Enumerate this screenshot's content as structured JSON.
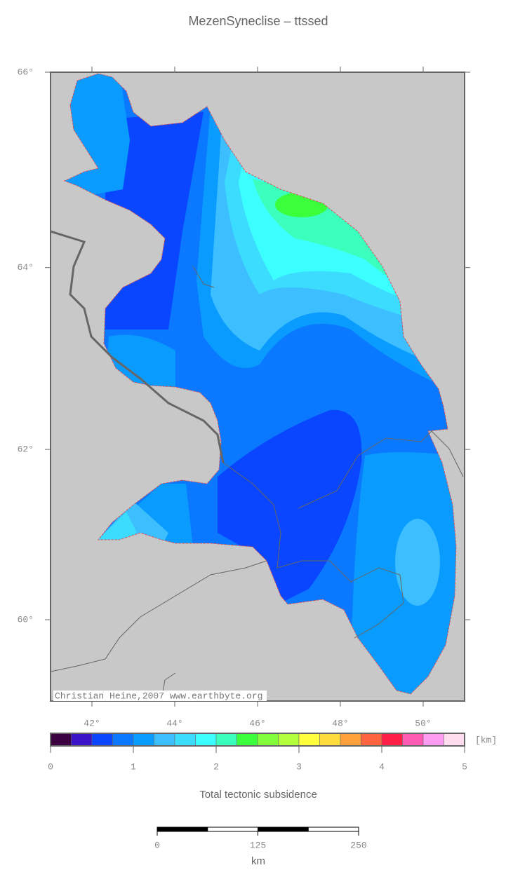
{
  "title": "MezenSyneclise – ttssed",
  "map": {
    "xlim": [
      41,
      51
    ],
    "ylim": [
      59,
      66
    ],
    "lat_ticks": [
      {
        "value": 66,
        "label": "66°"
      },
      {
        "value": 64,
        "label": "64°"
      },
      {
        "value": 62,
        "label": "62°"
      },
      {
        "value": 60,
        "label": "60°"
      }
    ],
    "lon_ticks": [
      {
        "value": 42,
        "label": "42°"
      },
      {
        "value": 44,
        "label": "44°"
      },
      {
        "value": 46,
        "label": "46°"
      },
      {
        "value": 48,
        "label": "48°"
      },
      {
        "value": 50,
        "label": "50°"
      }
    ],
    "credit": "Christian Heine,2007 www.earthbyte.org"
  },
  "colorbar": {
    "colors": [
      "#3c0040",
      "#3c14c8",
      "#0a46ff",
      "#0a78ff",
      "#0a9bff",
      "#3cbeff",
      "#3cdcff",
      "#3cffff",
      "#3cffbe",
      "#3cff3c",
      "#82ff3c",
      "#b4ff3c",
      "#ffff3c",
      "#ffdc3c",
      "#ffa03c",
      "#ff6440",
      "#ff1e46",
      "#ff5ab4",
      "#ff9bf0",
      "#ffdcf0"
    ],
    "lim": [
      0,
      5
    ],
    "ticks": [
      0,
      1,
      2,
      3,
      4,
      5
    ],
    "unit": "[km]",
    "label": "Total tectonic subsidence"
  },
  "scalebar": {
    "ticks": [
      0,
      125,
      250
    ],
    "unit": "km"
  }
}
